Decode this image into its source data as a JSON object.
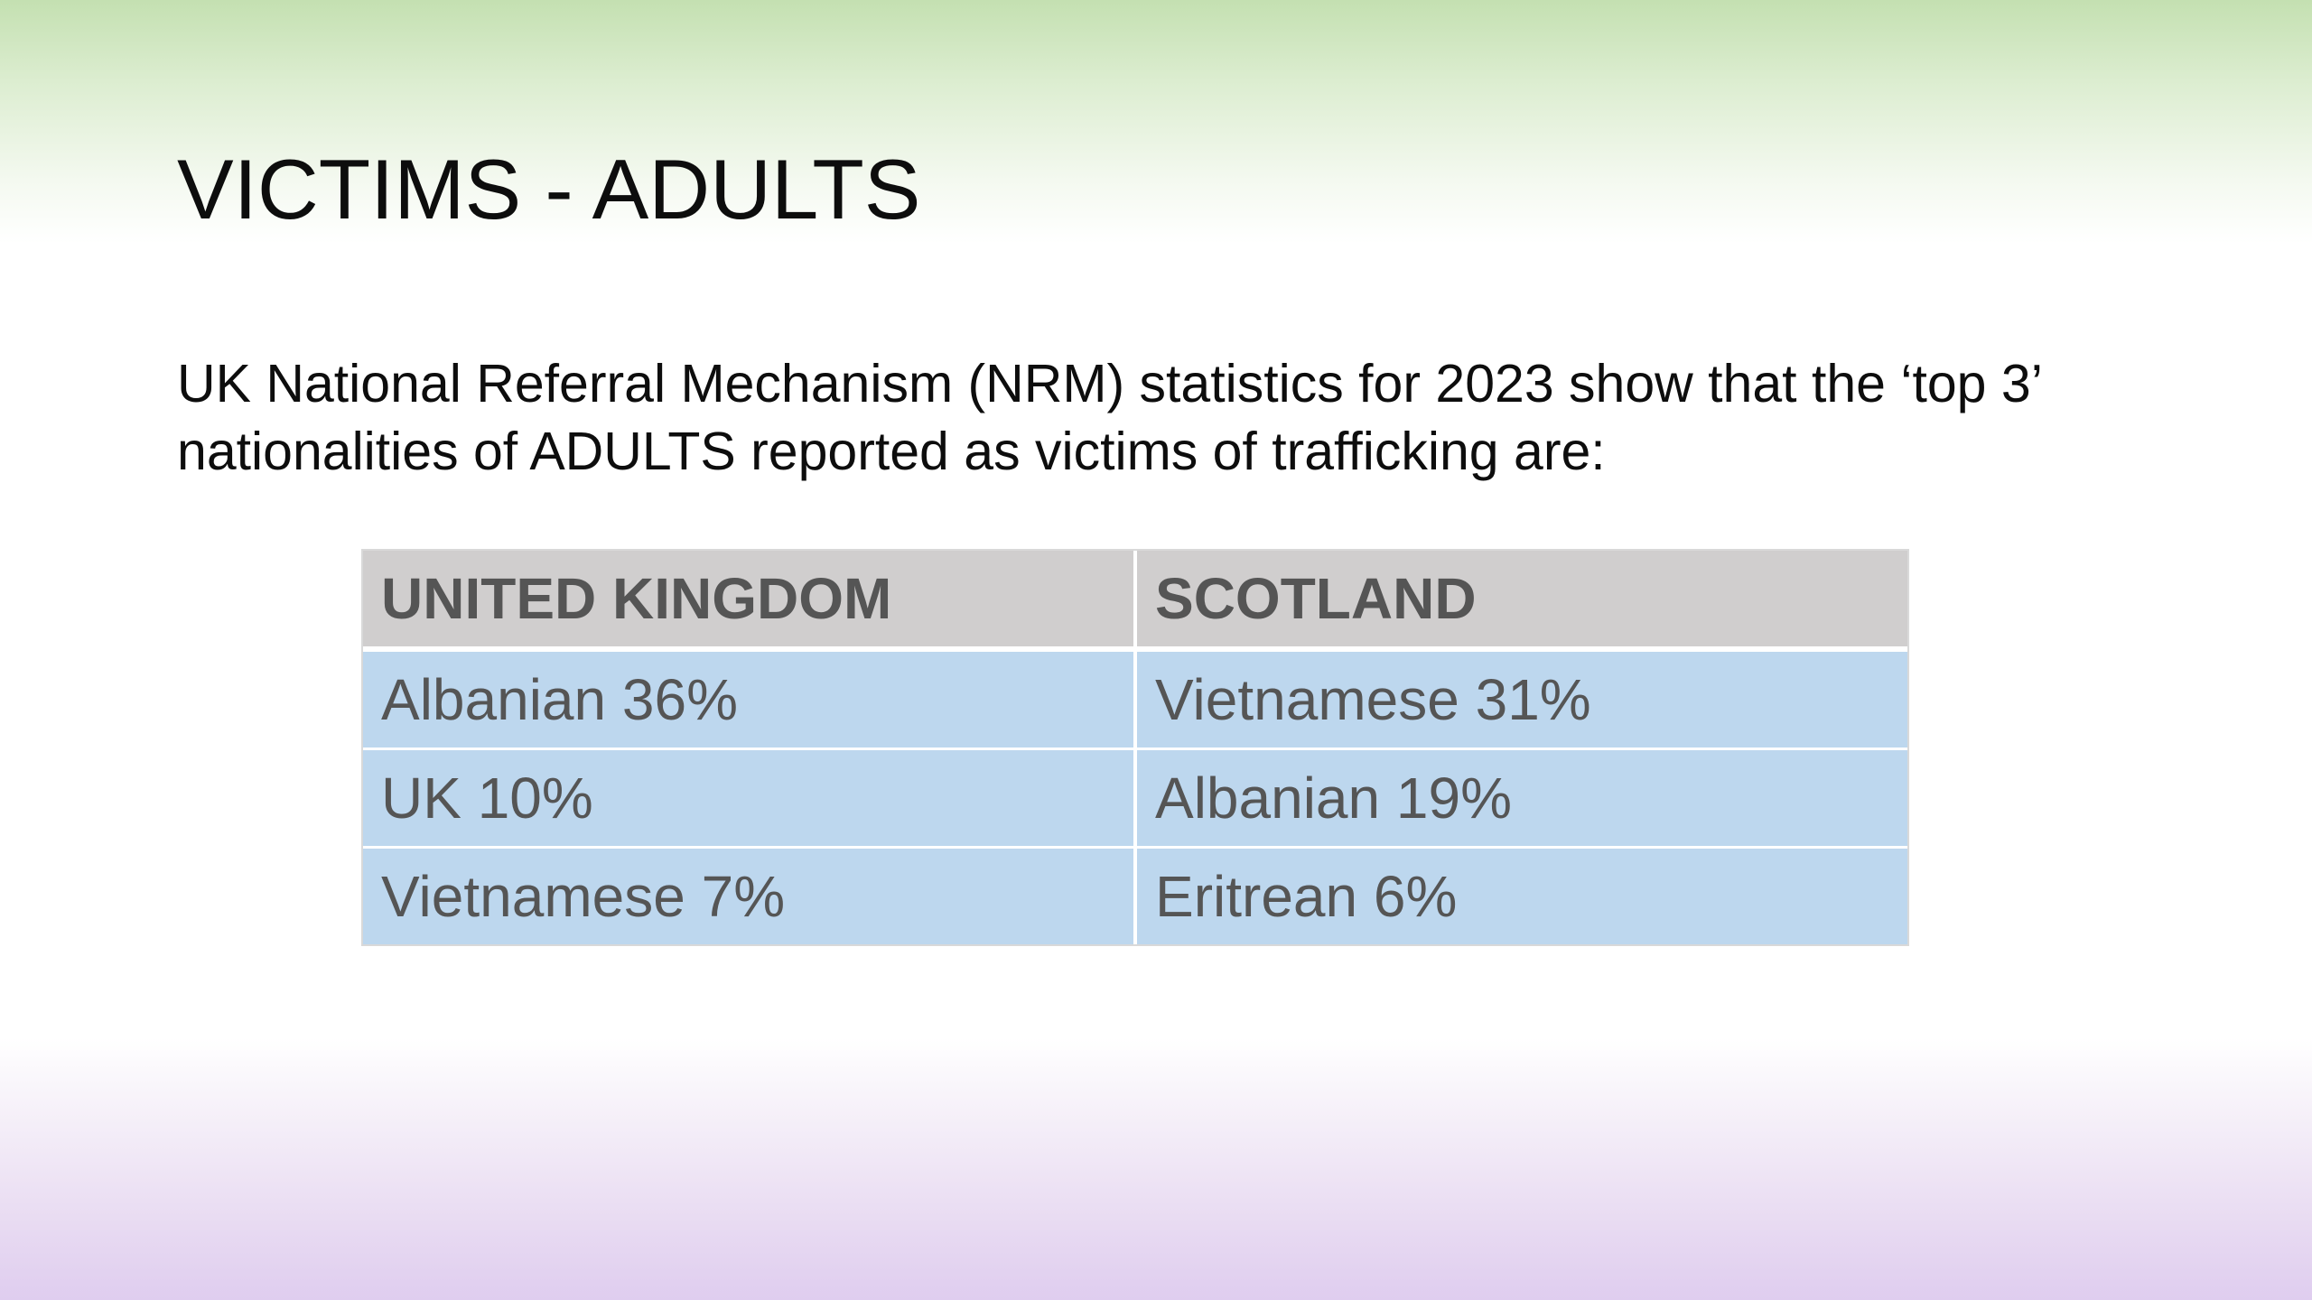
{
  "slide": {
    "title": "VICTIMS - ADULTS",
    "intro_line1": "UK National Referral Mechanism (NRM) statistics for 2023 show that the ‘top 3’",
    "intro_line2": "nationalities of ADULTS reported as victims of trafficking are:"
  },
  "table": {
    "headers": [
      "UNITED KINGDOM",
      "SCOTLAND"
    ],
    "rows": [
      [
        "Albanian 36%",
        "Vietnamese 31%"
      ],
      [
        "UK 10%",
        "Albanian 19%"
      ],
      [
        "Vietnamese 7%",
        "Eritrean 6%"
      ]
    ]
  },
  "colors": {
    "header_fill": "#d0cece",
    "row_fill": "#bdd7ee",
    "top_gradient": "#c4e0b1",
    "bottom_gradient": "#dfcdef"
  }
}
